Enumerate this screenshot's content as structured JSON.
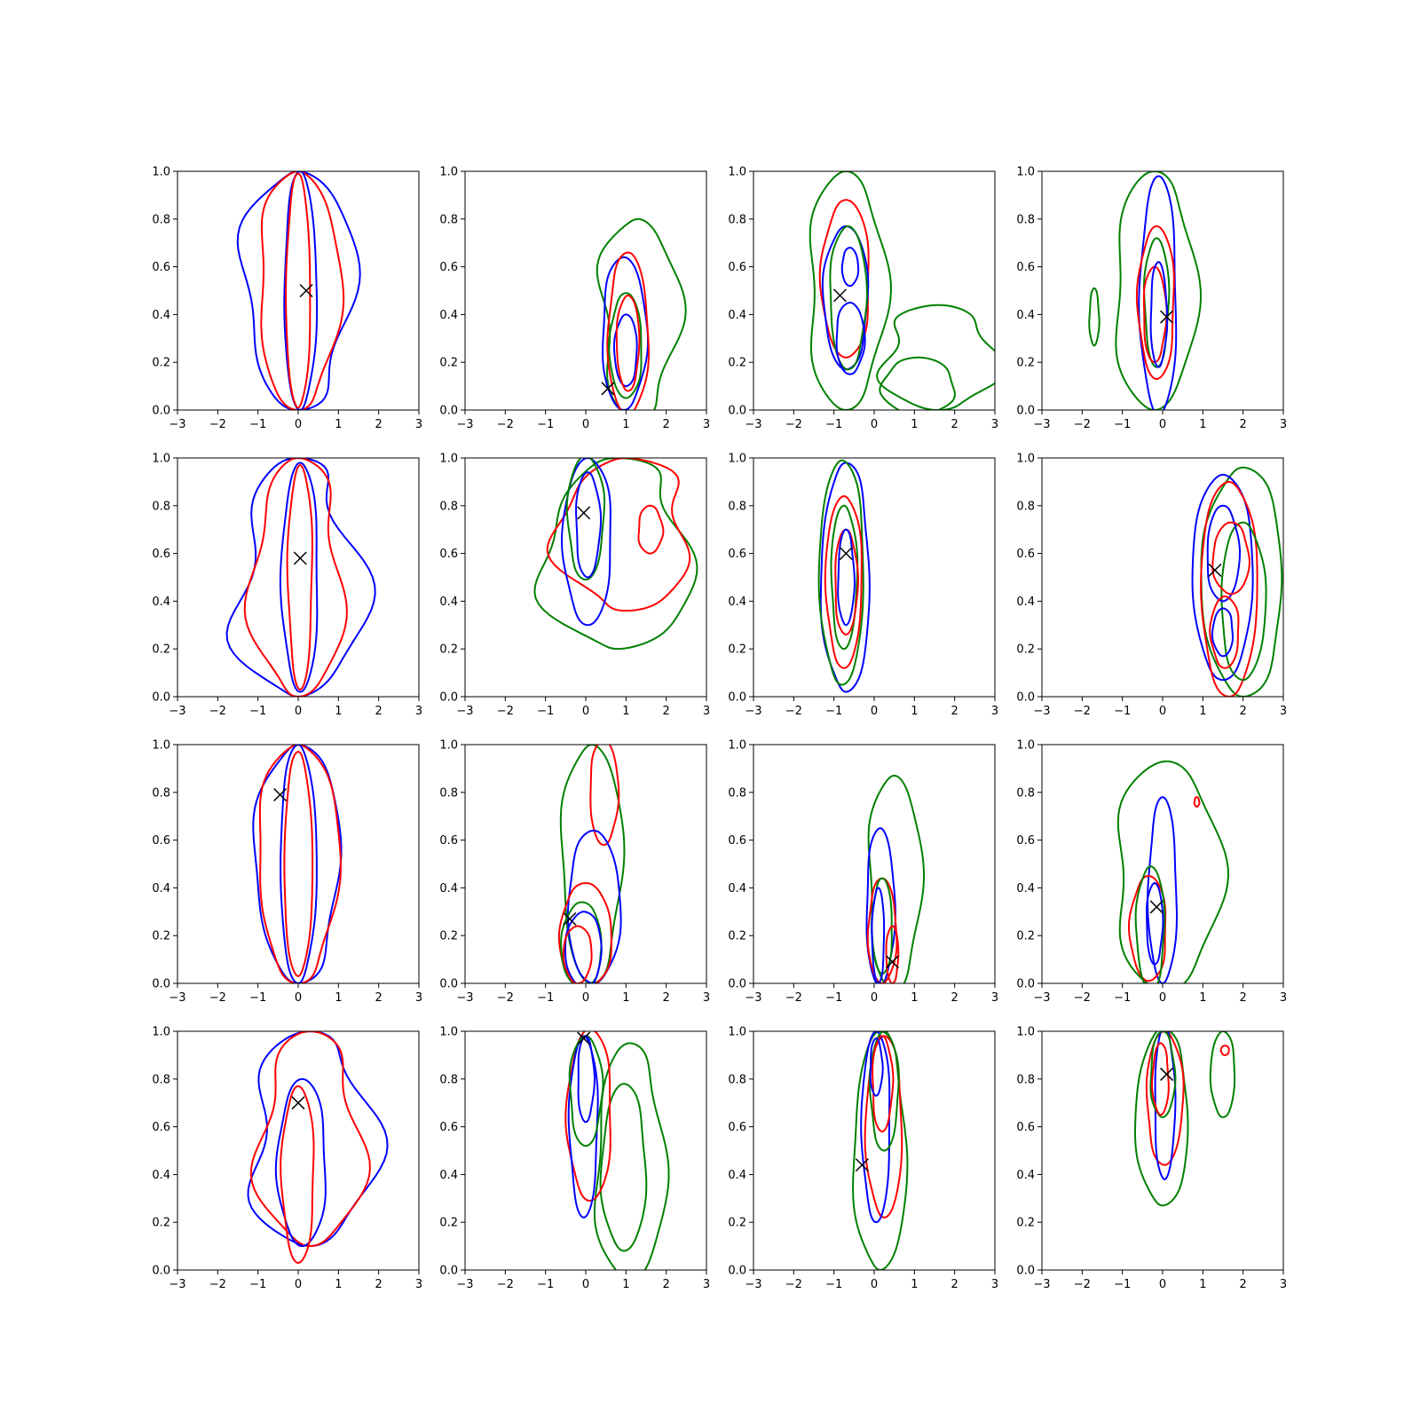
{
  "chart_data": {
    "type": "contour-grid",
    "rows": 4,
    "cols": 4,
    "xlim": [
      -3,
      3
    ],
    "ylim": [
      0,
      1
    ],
    "xticks": [
      -3,
      -2,
      -1,
      0,
      1,
      2,
      3
    ],
    "yticks": [
      0,
      0.2,
      0.4,
      0.6,
      0.8,
      1
    ],
    "colors": {
      "blue": "#0000ff",
      "red": "#ff0000",
      "green": "#008000",
      "marker": "#000000"
    },
    "panels": [
      {
        "marker": [
          0.2,
          0.5
        ],
        "contours": [
          {
            "color": "blue",
            "cx": 0.0,
            "cy": 0.5,
            "rx": 1.35,
            "ry": 0.5,
            "wob": [
              0.18,
              0.1
            ]
          },
          {
            "color": "red",
            "cx": 0.0,
            "cy": 0.5,
            "rx": 1.0,
            "ry": 0.5,
            "wob": [
              0.12,
              0.08
            ]
          },
          {
            "color": "blue",
            "cx": 0.05,
            "cy": 0.5,
            "rx": 0.4,
            "ry": 0.5
          },
          {
            "color": "red",
            "cx": 0.0,
            "cy": 0.5,
            "rx": 0.3,
            "ry": 0.49
          }
        ]
      },
      {
        "marker": [
          0.55,
          0.09
        ],
        "contours": [
          {
            "color": "green",
            "cx": 1.3,
            "cy": 0.38,
            "rx": 0.95,
            "ry": 0.42,
            "wob": [
              0.2,
              0.1
            ]
          },
          {
            "color": "blue",
            "cx": 0.95,
            "cy": 0.32,
            "rx": 0.55,
            "ry": 0.32
          },
          {
            "color": "red",
            "cx": 1.05,
            "cy": 0.32,
            "rx": 0.5,
            "ry": 0.34
          },
          {
            "color": "green",
            "cx": 1.0,
            "cy": 0.27,
            "rx": 0.4,
            "ry": 0.22
          },
          {
            "color": "blue",
            "cx": 1.0,
            "cy": 0.25,
            "rx": 0.28,
            "ry": 0.15
          },
          {
            "color": "red",
            "cx": 1.05,
            "cy": 0.28,
            "rx": 0.28,
            "ry": 0.2
          }
        ]
      },
      {
        "marker": [
          -0.85,
          0.48
        ],
        "contours": [
          {
            "color": "green",
            "cx": -0.7,
            "cy": 0.5,
            "rx": 0.95,
            "ry": 0.5,
            "wob": [
              0.1,
              0.08
            ]
          },
          {
            "color": "green",
            "cx": 1.6,
            "cy": 0.22,
            "rx": 1.4,
            "ry": 0.22,
            "wob": [
              0.15,
              0.12
            ]
          },
          {
            "color": "green",
            "cx": 1.1,
            "cy": 0.1,
            "rx": 0.9,
            "ry": 0.12
          },
          {
            "color": "red",
            "cx": -0.7,
            "cy": 0.55,
            "rx": 0.6,
            "ry": 0.33
          },
          {
            "color": "blue",
            "cx": -0.7,
            "cy": 0.47,
            "rx": 0.55,
            "ry": 0.3
          },
          {
            "color": "green",
            "cx": -0.65,
            "cy": 0.47,
            "rx": 0.45,
            "ry": 0.3
          },
          {
            "color": "blue",
            "cx": -0.6,
            "cy": 0.3,
            "rx": 0.35,
            "ry": 0.15
          },
          {
            "color": "blue",
            "cx": -0.6,
            "cy": 0.6,
            "rx": 0.2,
            "ry": 0.08
          }
        ]
      },
      {
        "marker": [
          0.1,
          0.39
        ],
        "contours": [
          {
            "color": "green",
            "cx": -0.2,
            "cy": 0.5,
            "rx": 1.0,
            "ry": 0.5,
            "wob": [
              0.1,
              0.06
            ]
          },
          {
            "color": "green",
            "cx": -1.7,
            "cy": 0.39,
            "rx": 0.12,
            "ry": 0.12
          },
          {
            "color": "blue",
            "cx": -0.1,
            "cy": 0.48,
            "rx": 0.45,
            "ry": 0.5
          },
          {
            "color": "red",
            "cx": -0.15,
            "cy": 0.45,
            "rx": 0.45,
            "ry": 0.32
          },
          {
            "color": "green",
            "cx": -0.15,
            "cy": 0.45,
            "rx": 0.3,
            "ry": 0.27
          },
          {
            "color": "red",
            "cx": -0.2,
            "cy": 0.4,
            "rx": 0.28,
            "ry": 0.2
          },
          {
            "color": "blue",
            "cx": -0.1,
            "cy": 0.4,
            "rx": 0.2,
            "ry": 0.22
          }
        ]
      },
      {
        "marker": [
          0.05,
          0.58
        ],
        "contours": [
          {
            "color": "blue",
            "cx": 0.0,
            "cy": 0.5,
            "rx": 1.5,
            "ry": 0.5,
            "wob": [
              0.25,
              0.15
            ]
          },
          {
            "color": "red",
            "cx": 0.0,
            "cy": 0.5,
            "rx": 1.1,
            "ry": 0.5,
            "wob": [
              0.15,
              0.12
            ]
          },
          {
            "color": "blue",
            "cx": 0.05,
            "cy": 0.5,
            "rx": 0.45,
            "ry": 0.48
          },
          {
            "color": "red",
            "cx": 0.05,
            "cy": 0.5,
            "rx": 0.3,
            "ry": 0.47
          }
        ]
      },
      {
        "marker": [
          -0.05,
          0.77
        ],
        "contours": [
          {
            "color": "green",
            "cx": 0.8,
            "cy": 0.6,
            "rx": 1.8,
            "ry": 0.4,
            "wob": [
              0.2,
              0.12
            ]
          },
          {
            "color": "red",
            "cx": 1.0,
            "cy": 0.68,
            "rx": 1.6,
            "ry": 0.32,
            "wob": [
              0.18,
              0.12
            ]
          },
          {
            "color": "blue",
            "cx": 0.05,
            "cy": 0.65,
            "rx": 0.6,
            "ry": 0.35
          },
          {
            "color": "green",
            "cx": 0.0,
            "cy": 0.75,
            "rx": 0.45,
            "ry": 0.26
          },
          {
            "color": "blue",
            "cx": 0.05,
            "cy": 0.72,
            "rx": 0.3,
            "ry": 0.22
          },
          {
            "color": "red",
            "cx": 1.6,
            "cy": 0.7,
            "rx": 0.3,
            "ry": 0.1
          }
        ]
      },
      {
        "marker": [
          -0.7,
          0.6
        ],
        "contours": [
          {
            "color": "blue",
            "cx": -0.7,
            "cy": 0.5,
            "rx": 0.6,
            "ry": 0.48,
            "wob": [
              0.1,
              0.06
            ]
          },
          {
            "color": "green",
            "cx": -0.8,
            "cy": 0.52,
            "rx": 0.55,
            "ry": 0.47
          },
          {
            "color": "red",
            "cx": -0.75,
            "cy": 0.48,
            "rx": 0.45,
            "ry": 0.36
          },
          {
            "color": "green",
            "cx": -0.75,
            "cy": 0.5,
            "rx": 0.32,
            "ry": 0.3
          },
          {
            "color": "red",
            "cx": -0.7,
            "cy": 0.48,
            "rx": 0.28,
            "ry": 0.22
          },
          {
            "color": "blue",
            "cx": -0.7,
            "cy": 0.5,
            "rx": 0.2,
            "ry": 0.2
          }
        ]
      },
      {
        "marker": [
          1.3,
          0.53
        ],
        "contours": [
          {
            "color": "green",
            "cx": 2.0,
            "cy": 0.48,
            "rx": 1.0,
            "ry": 0.48,
            "wob": [
              0.1,
              0.06
            ]
          },
          {
            "color": "blue",
            "cx": 1.5,
            "cy": 0.5,
            "rx": 0.75,
            "ry": 0.43
          },
          {
            "color": "red",
            "cx": 1.65,
            "cy": 0.45,
            "rx": 0.7,
            "ry": 0.45
          },
          {
            "color": "green",
            "cx": 2.0,
            "cy": 0.4,
            "rx": 0.55,
            "ry": 0.33
          },
          {
            "color": "blue",
            "cx": 1.5,
            "cy": 0.6,
            "rx": 0.4,
            "ry": 0.2
          },
          {
            "color": "red",
            "cx": 1.7,
            "cy": 0.58,
            "rx": 0.45,
            "ry": 0.15
          },
          {
            "color": "blue",
            "cx": 1.5,
            "cy": 0.27,
            "rx": 0.25,
            "ry": 0.1
          },
          {
            "color": "red",
            "cx": 1.55,
            "cy": 0.27,
            "rx": 0.35,
            "ry": 0.15
          }
        ]
      },
      {
        "marker": [
          -0.45,
          0.79
        ],
        "contours": [
          {
            "color": "blue",
            "cx": 0.0,
            "cy": 0.5,
            "rx": 1.05,
            "ry": 0.5,
            "wob": [
              0.12,
              0.08
            ]
          },
          {
            "color": "red",
            "cx": 0.0,
            "cy": 0.5,
            "rx": 1.0,
            "ry": 0.5,
            "wob": [
              0.12,
              0.08
            ]
          },
          {
            "color": "blue",
            "cx": 0.0,
            "cy": 0.5,
            "rx": 0.45,
            "ry": 0.5
          },
          {
            "color": "red",
            "cx": 0.0,
            "cy": 0.5,
            "rx": 0.35,
            "ry": 0.47
          }
        ]
      },
      {
        "marker": [
          -0.4,
          0.27
        ],
        "contours": [
          {
            "color": "green",
            "cx": 0.15,
            "cy": 0.5,
            "rx": 0.75,
            "ry": 0.5,
            "wob": [
              0.1,
              0.06
            ]
          },
          {
            "color": "red",
            "cx": 0.45,
            "cy": 0.8,
            "rx": 0.35,
            "ry": 0.22
          },
          {
            "color": "blue",
            "cx": 0.2,
            "cy": 0.32,
            "rx": 0.65,
            "ry": 0.32
          },
          {
            "color": "red",
            "cx": 0.0,
            "cy": 0.2,
            "rx": 0.65,
            "ry": 0.22
          },
          {
            "color": "green",
            "cx": -0.1,
            "cy": 0.16,
            "rx": 0.5,
            "ry": 0.18
          },
          {
            "color": "blue",
            "cx": -0.05,
            "cy": 0.14,
            "rx": 0.45,
            "ry": 0.16
          },
          {
            "color": "red",
            "cx": -0.2,
            "cy": 0.12,
            "rx": 0.35,
            "ry": 0.12
          }
        ]
      },
      {
        "marker": [
          0.45,
          0.09
        ],
        "contours": [
          {
            "color": "green",
            "cx": 0.5,
            "cy": 0.42,
            "rx": 0.65,
            "ry": 0.45,
            "wob": [
              0.1,
              0.06
            ]
          },
          {
            "color": "blue",
            "cx": 0.15,
            "cy": 0.32,
            "rx": 0.35,
            "ry": 0.33
          },
          {
            "color": "red",
            "cx": 0.2,
            "cy": 0.22,
            "rx": 0.35,
            "ry": 0.22
          },
          {
            "color": "green",
            "cx": 0.2,
            "cy": 0.24,
            "rx": 0.25,
            "ry": 0.2
          },
          {
            "color": "blue",
            "cx": 0.1,
            "cy": 0.2,
            "rx": 0.15,
            "ry": 0.2
          },
          {
            "color": "red",
            "cx": 0.45,
            "cy": 0.12,
            "rx": 0.15,
            "ry": 0.12
          }
        ]
      },
      {
        "marker": [
          -0.15,
          0.32
        ],
        "contours": [
          {
            "color": "green",
            "cx": 0.1,
            "cy": 0.45,
            "rx": 1.3,
            "ry": 0.48,
            "wob": [
              0.12,
              0.06
            ]
          },
          {
            "color": "red",
            "cx": 0.85,
            "cy": 0.76,
            "rx": 0.06,
            "ry": 0.02
          },
          {
            "color": "blue",
            "cx": 0.0,
            "cy": 0.39,
            "rx": 0.35,
            "ry": 0.39
          },
          {
            "color": "red",
            "cx": -0.35,
            "cy": 0.23,
            "rx": 0.45,
            "ry": 0.22
          },
          {
            "color": "green",
            "cx": -0.3,
            "cy": 0.23,
            "rx": 0.35,
            "ry": 0.26
          },
          {
            "color": "blue",
            "cx": -0.2,
            "cy": 0.25,
            "rx": 0.2,
            "ry": 0.17
          }
        ]
      },
      {
        "marker": [
          0.0,
          0.7
        ],
        "contours": [
          {
            "color": "blue",
            "cx": 0.3,
            "cy": 0.55,
            "rx": 1.5,
            "ry": 0.45,
            "wob": [
              0.2,
              0.1
            ]
          },
          {
            "color": "red",
            "cx": 0.3,
            "cy": 0.55,
            "rx": 1.25,
            "ry": 0.45,
            "wob": [
              0.18,
              0.1
            ]
          },
          {
            "color": "blue",
            "cx": 0.1,
            "cy": 0.45,
            "rx": 0.6,
            "ry": 0.35
          },
          {
            "color": "red",
            "cx": 0.0,
            "cy": 0.4,
            "rx": 0.4,
            "ry": 0.37
          }
        ]
      },
      {
        "marker": [
          -0.05,
          0.97
        ],
        "contours": [
          {
            "color": "green",
            "cx": 1.1,
            "cy": 0.45,
            "rx": 0.85,
            "ry": 0.5,
            "wob": [
              0.12,
              0.08
            ]
          },
          {
            "color": "green",
            "cx": 0.95,
            "cy": 0.43,
            "rx": 0.55,
            "ry": 0.35
          },
          {
            "color": "red",
            "cx": 0.1,
            "cy": 0.65,
            "rx": 0.55,
            "ry": 0.36
          },
          {
            "color": "blue",
            "cx": -0.05,
            "cy": 0.6,
            "rx": 0.35,
            "ry": 0.38
          },
          {
            "color": "green",
            "cx": 0.0,
            "cy": 0.75,
            "rx": 0.4,
            "ry": 0.23
          },
          {
            "color": "blue",
            "cx": 0.0,
            "cy": 0.8,
            "rx": 0.2,
            "ry": 0.18
          }
        ]
      },
      {
        "marker": [
          -0.3,
          0.44
        ],
        "contours": [
          {
            "color": "green",
            "cx": 0.15,
            "cy": 0.5,
            "rx": 0.65,
            "ry": 0.5,
            "wob": [
              0.1,
              0.06
            ]
          },
          {
            "color": "red",
            "cx": 0.25,
            "cy": 0.6,
            "rx": 0.45,
            "ry": 0.38
          },
          {
            "color": "blue",
            "cx": 0.05,
            "cy": 0.6,
            "rx": 0.35,
            "ry": 0.4
          },
          {
            "color": "green",
            "cx": 0.25,
            "cy": 0.75,
            "rx": 0.35,
            "ry": 0.25
          },
          {
            "color": "red",
            "cx": 0.2,
            "cy": 0.78,
            "rx": 0.25,
            "ry": 0.2
          },
          {
            "color": "blue",
            "cx": 0.05,
            "cy": 0.85,
            "rx": 0.15,
            "ry": 0.12
          }
        ]
      },
      {
        "marker": [
          0.1,
          0.82
        ],
        "contours": [
          {
            "color": "green",
            "cx": 0.0,
            "cy": 0.64,
            "rx": 0.65,
            "ry": 0.37,
            "wob": [
              0.1,
              0.05
            ]
          },
          {
            "color": "green",
            "cx": 1.5,
            "cy": 0.82,
            "rx": 0.3,
            "ry": 0.18
          },
          {
            "color": "red",
            "cx": 1.55,
            "cy": 0.92,
            "rx": 0.1,
            "ry": 0.02
          },
          {
            "color": "red",
            "cx": 0.05,
            "cy": 0.72,
            "rx": 0.45,
            "ry": 0.28
          },
          {
            "color": "blue",
            "cx": 0.05,
            "cy": 0.7,
            "rx": 0.25,
            "ry": 0.32
          },
          {
            "color": "green",
            "cx": 0.0,
            "cy": 0.82,
            "rx": 0.3,
            "ry": 0.18
          },
          {
            "color": "red",
            "cx": -0.05,
            "cy": 0.8,
            "rx": 0.2,
            "ry": 0.15
          }
        ]
      }
    ]
  }
}
